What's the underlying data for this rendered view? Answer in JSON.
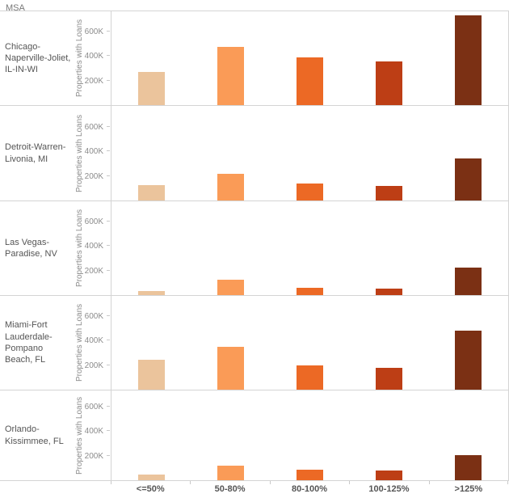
{
  "header": {
    "title": "MSA"
  },
  "colors": {
    "palette": [
      "#EBC49C",
      "#FA9B57",
      "#EC6925",
      "#BD3E15",
      "#7B3014"
    ],
    "panel_border": "#d4d4d4",
    "axis_text": "#8c8c8c",
    "label_text": "#555555",
    "header_text": "#787878"
  },
  "chart_data": {
    "type": "bar",
    "title": "MSA",
    "layout": "small-multiples-rows",
    "categories": [
      "<=50%",
      "50-80%",
      "80-100%",
      "100-125%",
      ">125%"
    ],
    "ylabel": "Properties with Loans",
    "yticks": [
      "200K",
      "400K",
      "600K"
    ],
    "ytick_values": [
      200000,
      400000,
      600000
    ],
    "ylim": [
      0,
      760000
    ],
    "grid": false,
    "legend": "none",
    "series_colors": {
      "<=50%": "#EBC49C",
      "50-80%": "#FA9B57",
      "80-100%": "#EC6925",
      "100-125%": "#BD3E15",
      ">125%": "#7B3014"
    },
    "rows": [
      {
        "msa": "Chicago-Naperville-Joliet, IL-IN-WI",
        "values": [
          270000,
          470000,
          390000,
          355000,
          725000
        ]
      },
      {
        "msa": "Detroit-Warren-Livonia, MI",
        "values": [
          125000,
          215000,
          135000,
          120000,
          340000
        ]
      },
      {
        "msa": "Las Vegas-Paradise, NV",
        "values": [
          30000,
          125000,
          60000,
          55000,
          220000
        ]
      },
      {
        "msa": "Miami-Fort Lauderdale-Pompano Beach, FL",
        "values": [
          245000,
          350000,
          195000,
          180000,
          480000
        ]
      },
      {
        "msa": "Orlando-Kissimmee, FL",
        "values": [
          45000,
          120000,
          85000,
          80000,
          205000
        ]
      }
    ]
  }
}
